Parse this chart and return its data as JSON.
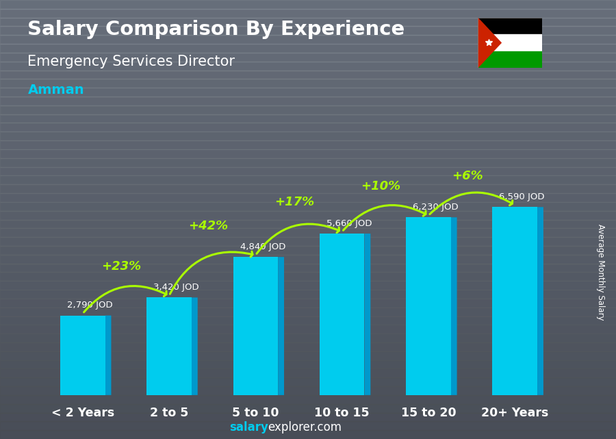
{
  "title_line1": "Salary Comparison By Experience",
  "title_line2": "Emergency Services Director",
  "city": "Amman",
  "ylabel_right": "Average Monthly Salary",
  "categories": [
    "< 2 Years",
    "2 to 5",
    "5 to 10",
    "10 to 15",
    "15 to 20",
    "20+ Years"
  ],
  "values": [
    2790,
    3420,
    4840,
    5660,
    6230,
    6590
  ],
  "value_labels": [
    "2,790 JOD",
    "3,420 JOD",
    "4,840 JOD",
    "5,660 JOD",
    "6,230 JOD",
    "6,590 JOD"
  ],
  "pct_changes": [
    "+23%",
    "+42%",
    "+17%",
    "+10%",
    "+6%"
  ],
  "bar_color_main": "#00ccee",
  "bar_color_side": "#0088bb",
  "bar_color_top": "#44ddff",
  "bg_color": "#4a5560",
  "title_color": "#ffffff",
  "city_color": "#00ccee",
  "value_label_color": "#ffffff",
  "pct_color": "#aaff00",
  "arrow_color": "#aaff00",
  "ylim_max": 8000,
  "bar_width": 0.52,
  "footer_salary_color": "#00ccee",
  "footer_text_color": "#ffffff"
}
